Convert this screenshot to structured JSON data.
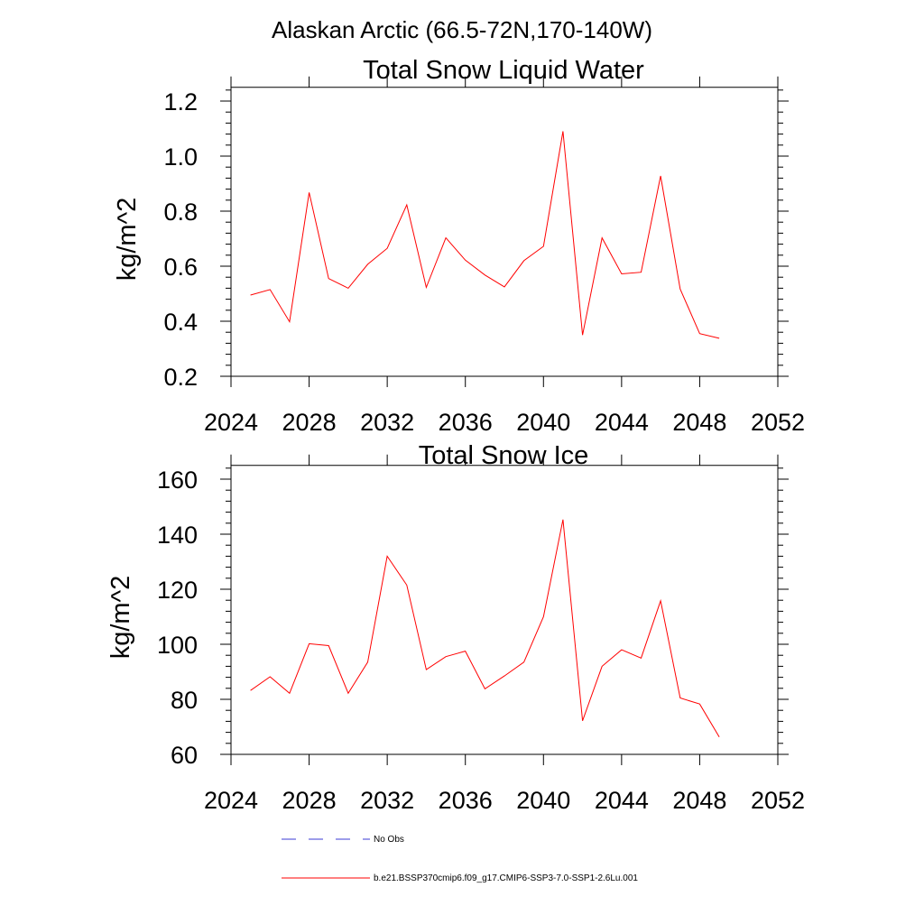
{
  "main_title": "Alaskan Arctic (66.5-72N,170-140W)",
  "colors": {
    "model": "#ff0000",
    "obs": "#3b3bd6",
    "axis": "#000000"
  },
  "legend": {
    "obs_label": "No Obs",
    "model_label": "b.e21.BSSP370cmip6.f09_g17.CMIP6-SSP3-7.0-SSP1-2.6Lu.001"
  },
  "chart_data": [
    {
      "type": "line",
      "title": "Total Snow Liquid Water",
      "xlabel": "",
      "ylabel": "kg/m^2",
      "xlim": [
        2024,
        2052
      ],
      "ylim": [
        0.2,
        1.25
      ],
      "xticks": [
        "2024",
        "2028",
        "2032",
        "2036",
        "2040",
        "2044",
        "2048",
        "2052"
      ],
      "yticks": [
        "0.2",
        "0.4",
        "0.6",
        "0.8",
        "1.0",
        "1.2"
      ],
      "x": [
        2025,
        2026,
        2027,
        2028,
        2029,
        2030,
        2031,
        2032,
        2033,
        2034,
        2035,
        2036,
        2037,
        2038,
        2039,
        2040,
        2041,
        2042,
        2043,
        2044,
        2045,
        2046,
        2047,
        2048,
        2049
      ],
      "series": [
        {
          "name": "b.e21.BSSP370cmip6.f09_g17.CMIP6-SSP3-7.0-SSP1-2.6Lu.001",
          "values": [
            0.495,
            0.515,
            0.398,
            0.868,
            0.555,
            0.52,
            0.607,
            0.665,
            0.823,
            0.523,
            0.703,
            0.622,
            0.568,
            0.525,
            0.62,
            0.672,
            1.09,
            0.35,
            0.703,
            0.572,
            0.578,
            0.928,
            0.517,
            0.355,
            0.338
          ]
        }
      ],
      "grid": false
    },
    {
      "type": "line",
      "title": "Total Snow Ice",
      "xlabel": "",
      "ylabel": "kg/m^2",
      "xlim": [
        2024,
        2052
      ],
      "ylim": [
        60,
        165
      ],
      "xticks": [
        "2024",
        "2028",
        "2032",
        "2036",
        "2040",
        "2044",
        "2048",
        "2052"
      ],
      "yticks": [
        "60",
        "80",
        "100",
        "120",
        "140",
        "160"
      ],
      "x": [
        2025,
        2026,
        2027,
        2028,
        2029,
        2030,
        2031,
        2032,
        2033,
        2034,
        2035,
        2036,
        2037,
        2038,
        2039,
        2040,
        2041,
        2042,
        2043,
        2044,
        2045,
        2046,
        2047,
        2048,
        2049
      ],
      "series": [
        {
          "name": "b.e21.BSSP370cmip6.f09_g17.CMIP6-SSP3-7.0-SSP1-2.6Lu.001",
          "values": [
            83.2,
            88.2,
            82.2,
            100.2,
            99.5,
            82.2,
            93.5,
            132.0,
            121.5,
            90.8,
            95.5,
            97.5,
            83.8,
            88.5,
            93.5,
            110.0,
            145.3,
            72.2,
            92.0,
            98.0,
            95.0,
            115.8,
            80.5,
            78.3,
            66.3
          ]
        }
      ],
      "grid": false
    }
  ]
}
